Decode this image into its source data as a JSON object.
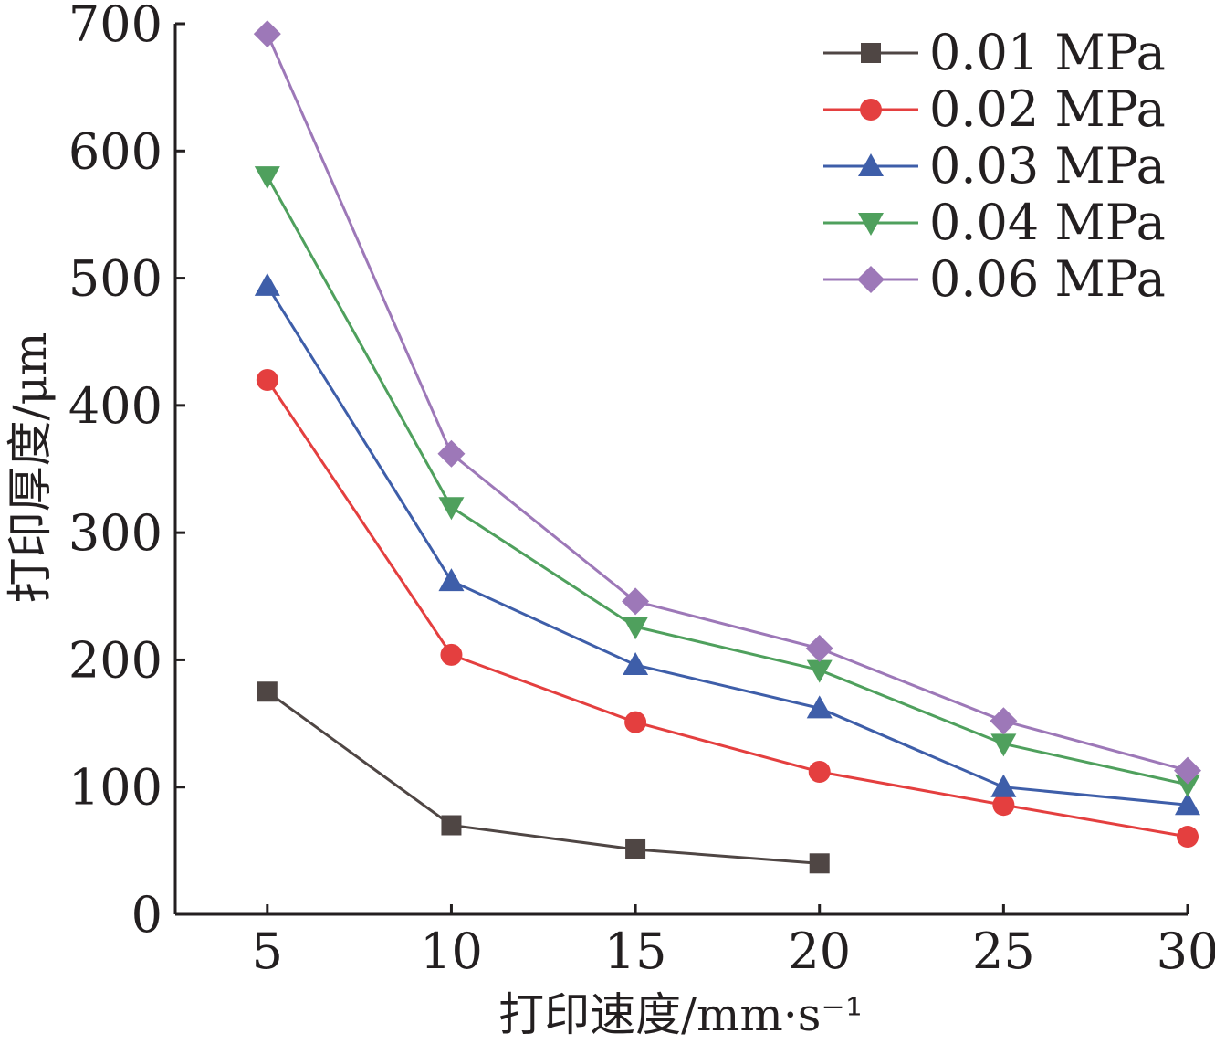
{
  "chart_data": {
    "type": "line",
    "title": "",
    "xlabel": "打印速度/mm·s⁻¹",
    "ylabel": "打印厚度/μm",
    "x": [
      5,
      10,
      15,
      20,
      25,
      30
    ],
    "xticks": [
      "5",
      "10",
      "15",
      "20",
      "25",
      "30"
    ],
    "yticks": [
      "0",
      "100",
      "200",
      "300",
      "400",
      "500",
      "600",
      "700"
    ],
    "xlim": [
      2.5,
      30
    ],
    "ylim": [
      0,
      700
    ],
    "grid": false,
    "legend_position": "top-right",
    "series": [
      {
        "name": "0.01 MPa",
        "color": "#4f4644",
        "marker": "square",
        "values": [
          175,
          70,
          51,
          40,
          null,
          null
        ]
      },
      {
        "name": "0.02 MPa",
        "color": "#e43f3f",
        "marker": "circle",
        "values": [
          420,
          204,
          151,
          112,
          86,
          61
        ]
      },
      {
        "name": "0.03 MPa",
        "color": "#3e5ea9",
        "marker": "triangle-up",
        "values": [
          494,
          262,
          196,
          162,
          100,
          86
        ]
      },
      {
        "name": "0.04 MPa",
        "color": "#4fa05d",
        "marker": "triangle-down",
        "values": [
          580,
          320,
          226,
          192,
          134,
          102
        ]
      },
      {
        "name": "0.06 MPa",
        "color": "#9d78b8",
        "marker": "diamond",
        "values": [
          692,
          362,
          246,
          209,
          152,
          113
        ]
      }
    ]
  }
}
